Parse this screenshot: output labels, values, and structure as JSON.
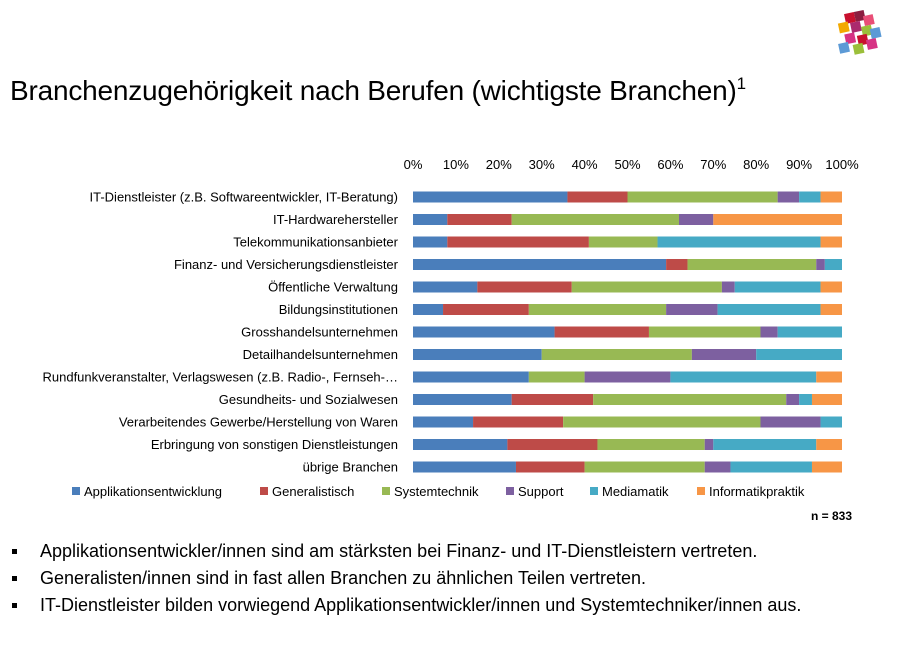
{
  "title": "Branchenzugehörigkeit nach Berufen (wichtigste Branchen)",
  "title_footnote": "1",
  "chart_data": {
    "type": "bar",
    "orientation": "horizontal",
    "stacked": "percent",
    "categories": [
      "IT-Dienstleister (z.B. Softwareentwickler, IT-Beratung)",
      "IT-Hardwarehersteller",
      "Telekommunikationsanbieter",
      "Finanz- und Versicherungsdienstleister",
      "Öffentliche Verwaltung",
      "Bildungsinstitutionen",
      "Grosshandelsunternehmen",
      "Detailhandelsunternehmen",
      "Rundfunkveranstalter, Verlagswesen (z.B. Radio-, Fernseh-…",
      "Gesundheits- und Sozialwesen",
      "Verarbeitendes Gewerbe/Herstellung von Waren",
      "Erbringung von sonstigen Dienstleistungen",
      "übrige Branchen"
    ],
    "series": [
      {
        "name": "Applikationsentwicklung",
        "color": "#4a7ebb",
        "values": [
          36,
          8,
          8,
          59,
          15,
          7,
          33,
          30,
          27,
          23,
          14,
          22,
          24
        ]
      },
      {
        "name": "Generalistisch",
        "color": "#be4b48",
        "values": [
          14,
          15,
          33,
          5,
          22,
          20,
          22,
          0,
          0,
          19,
          21,
          21,
          16
        ]
      },
      {
        "name": "Systemtechnik",
        "color": "#98b954",
        "values": [
          35,
          39,
          16,
          30,
          35,
          32,
          26,
          35,
          13,
          45,
          46,
          25,
          28
        ]
      },
      {
        "name": "Support",
        "color": "#7d60a0",
        "values": [
          5,
          8,
          0,
          2,
          3,
          12,
          4,
          15,
          20,
          3,
          14,
          2,
          6
        ]
      },
      {
        "name": "Mediamatik",
        "color": "#46aac5",
        "values": [
          5,
          0,
          38,
          4,
          20,
          24,
          15,
          20,
          34,
          3,
          5,
          24,
          19
        ]
      },
      {
        "name": "Informatikpraktik",
        "color": "#f79646",
        "values": [
          5,
          30,
          5,
          0,
          5,
          5,
          0,
          0,
          6,
          7,
          0,
          6,
          7
        ]
      }
    ],
    "x_ticks": [
      "0%",
      "10%",
      "20%",
      "30%",
      "40%",
      "50%",
      "60%",
      "70%",
      "80%",
      "90%",
      "100%"
    ],
    "xlim": [
      0,
      100
    ],
    "x_axis_position": "top",
    "grid": false,
    "legend_position": "bottom",
    "note": "n = 833"
  },
  "bullets": [
    "Applikationsentwickler/innen sind am stärksten bei Finanz- und IT-Dienstleistern vertreten.",
    "Generalisten/innen sind in fast allen Branchen zu ähnlichen Teilen vertreten.",
    "IT-Dienstleister bilden vorwiegend Applikationsentwickler/innen und Systemtechniker/innen aus."
  ],
  "logo": {
    "name": "colored-squares-logo",
    "colors": [
      "#c8102e",
      "#8b1d3f",
      "#e94e77",
      "#f2a900",
      "#ab2a6e",
      "#9bbf3a",
      "#5c9ad6",
      "#d63384"
    ]
  }
}
